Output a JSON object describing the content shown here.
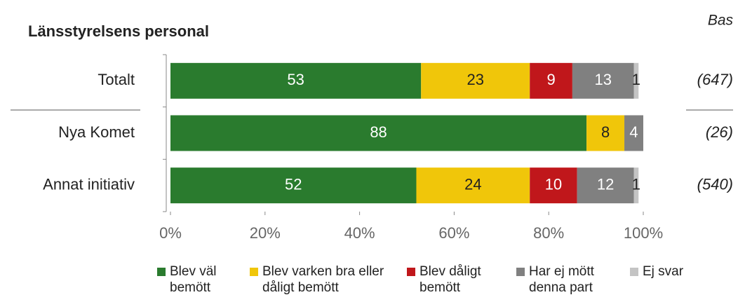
{
  "chart_data": {
    "type": "stacked-bar-horizontal",
    "title": "Länsstyrelsens personal",
    "base_header": "Bas",
    "categories": [
      "Totalt",
      "Nya Komet",
      "Annat initiativ"
    ],
    "bases": [
      "(647)",
      "(26)",
      "(540)"
    ],
    "series": [
      {
        "name": "Blev väl bemött",
        "color": "#2a7b2e",
        "values": [
          53,
          88,
          52
        ]
      },
      {
        "name": "Blev varken bra eller dåligt bemött",
        "color": "#f0c60a",
        "values": [
          23,
          8,
          24
        ]
      },
      {
        "name": "Blev dåligt bemött",
        "color": "#c0171b",
        "values": [
          9,
          null,
          10
        ]
      },
      {
        "name": "Har ej mött denna part",
        "color": "#808080",
        "values": [
          13,
          4,
          12
        ]
      },
      {
        "name": "Ej svar",
        "color": "#c4c4c4",
        "values": [
          1,
          null,
          1
        ]
      }
    ],
    "xlim": [
      0,
      100
    ],
    "xticks": [
      {
        "value": 0,
        "label": "0%"
      },
      {
        "value": 20,
        "label": "20%"
      },
      {
        "value": 40,
        "label": "40%"
      },
      {
        "value": 60,
        "label": "60%"
      },
      {
        "value": 80,
        "label": "80%"
      },
      {
        "value": 100,
        "label": "100%"
      }
    ]
  }
}
